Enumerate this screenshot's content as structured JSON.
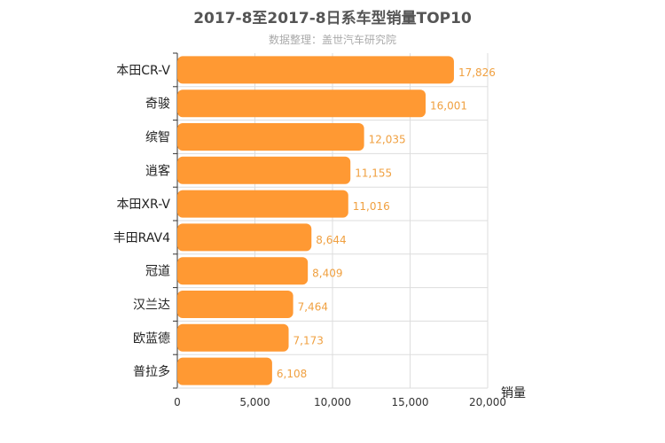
{
  "chart_data": {
    "type": "bar",
    "orientation": "horizontal",
    "title": "2017-8至2017-8日系车型销量TOP10",
    "subtitle": "数据整理：盖世汽车研究院",
    "xlabel": "销量",
    "ylabel": "",
    "categories": [
      "本田CR-V",
      "奇骏",
      "缤智",
      "逍客",
      "本田XR-V",
      "丰田RAV4",
      "冠道",
      "汉兰达",
      "欧蓝德",
      "普拉多"
    ],
    "values": [
      17826,
      16001,
      12035,
      11155,
      11016,
      8644,
      8409,
      7464,
      7173,
      6108
    ],
    "value_labels": [
      "17,826",
      "16,001",
      "12,035",
      "11,155",
      "11,016",
      "8,644",
      "8,409",
      "7,464",
      "7,173",
      "6,108"
    ],
    "xlim": [
      0,
      20000
    ],
    "ticks": [
      0,
      5000,
      10000,
      15000,
      20000
    ],
    "tick_labels": [
      "0",
      "5,000",
      "10,000",
      "15,000",
      "20,000"
    ],
    "grid": true,
    "colors": {
      "bar": "#ff9933",
      "value_label": "#f0a040",
      "grid": "#dddddd",
      "axis": "#333333"
    }
  }
}
